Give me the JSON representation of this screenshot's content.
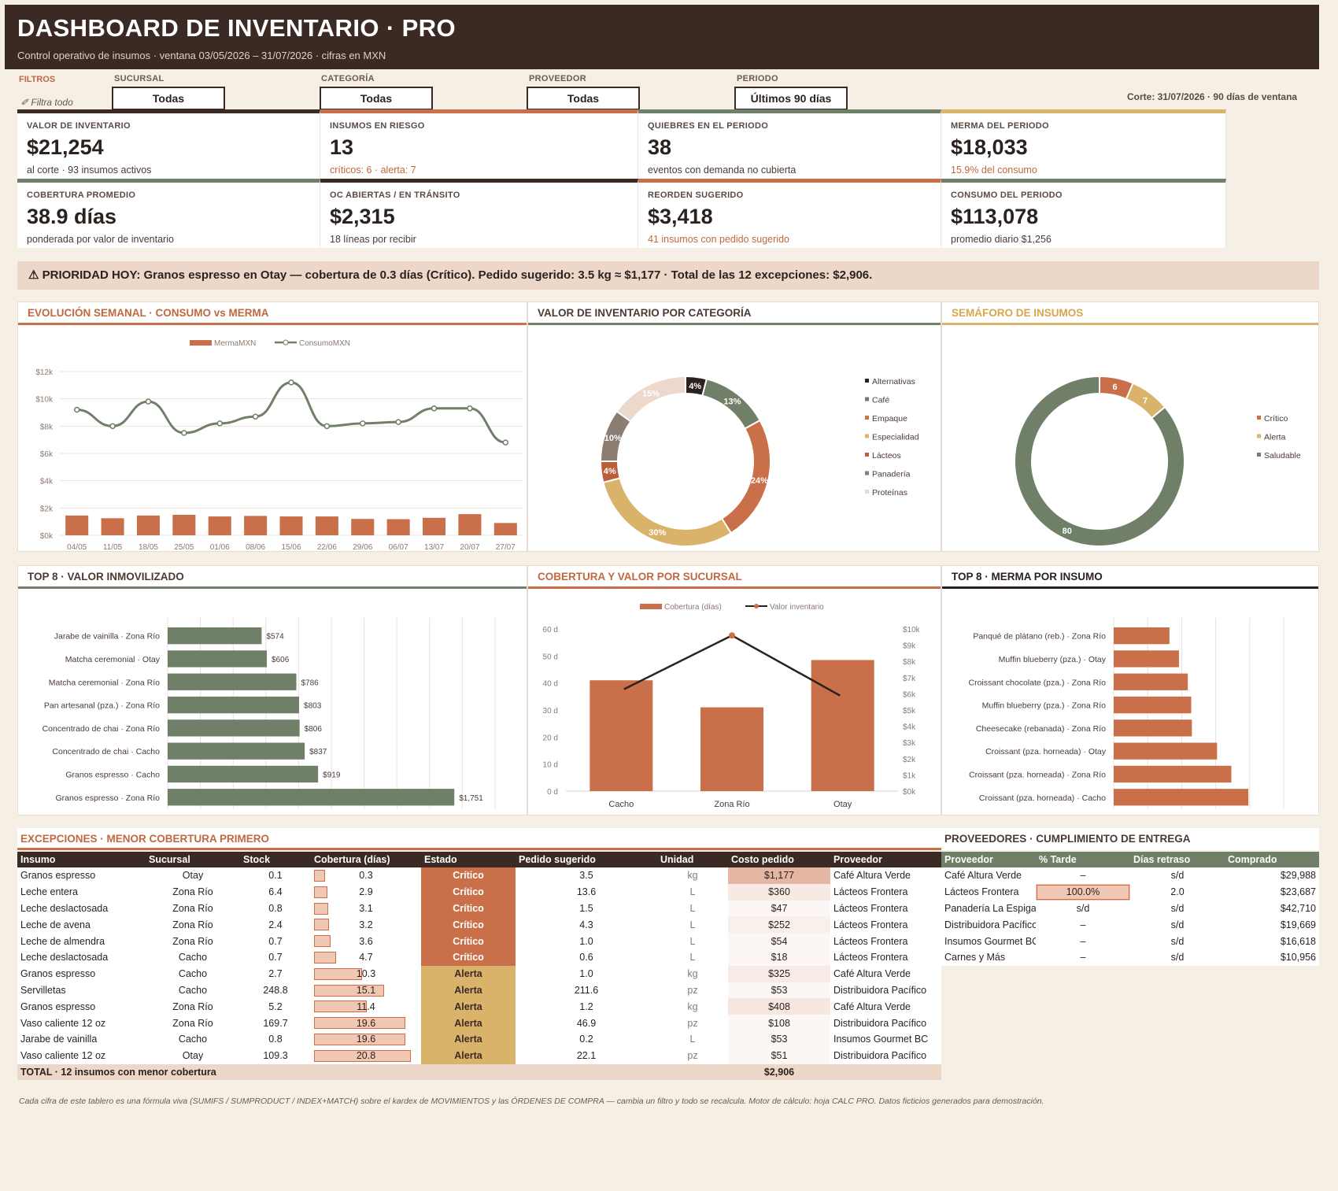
{
  "header": {
    "title": "DASHBOARD DE INVENTARIO · PRO",
    "subtitle": "Control operativo de insumos · ventana 03/05/2026 – 31/07/2026 · cifras en MXN"
  },
  "filters": {
    "label": "FILTROS",
    "clear": "Filtra todo",
    "items": [
      {
        "label": "SUCURSAL",
        "value": "Todas"
      },
      {
        "label": "CATEGORÍA",
        "value": "Todas"
      },
      {
        "label": "PROVEEDOR",
        "value": "Todas"
      },
      {
        "label": "PERIODO",
        "value": "Últimos 90 días"
      }
    ],
    "cut": "Corte: 31/07/2026 · 90 días de ventana"
  },
  "kpis": [
    {
      "label": "VALOR DE INVENTARIO",
      "value": "$21,254",
      "sub": "al corte · 93 insumos activos",
      "accent": false
    },
    {
      "label": "INSUMOS EN RIESGO",
      "value": "13",
      "sub": "críticos: 6 · alerta: 7",
      "accent": true
    },
    {
      "label": "QUIEBRES EN EL PERIODO",
      "value": "38",
      "sub": "eventos con demanda no cubierta",
      "accent": false
    },
    {
      "label": "MERMA DEL PERIODO",
      "value": "$18,033",
      "sub": "15.9% del consumo",
      "accent": true
    },
    {
      "label": "COBERTURA PROMEDIO",
      "value": "38.9 días",
      "sub": "ponderada por valor de inventario",
      "accent": false
    },
    {
      "label": "OC ABIERTAS / EN TRÁNSITO",
      "value": "$2,315",
      "sub": "18 líneas por recibir",
      "accent": false
    },
    {
      "label": "REORDEN SUGERIDO",
      "value": "$3,418",
      "sub": "41 insumos con pedido sugerido",
      "accent": true
    },
    {
      "label": "CONSUMO DEL PERIODO",
      "value": "$113,078",
      "sub": "promedio diario $1,256",
      "accent": false
    }
  ],
  "alert": "⚠ PRIORIDAD HOY: Granos espresso en Otay — cobertura de 0.3 días (Crítico). Pedido sugerido: 3.5 kg ≈ $1,177 · Total de las 12 excepciones: $2,906.",
  "panels": {
    "weekly": "EVOLUCIÓN SEMANAL · CONSUMO vs MERMA",
    "category": "VALOR DE INVENTARIO POR CATEGORÍA",
    "semaforo": "SEMÁFORO DE INSUMOS",
    "top8val": "TOP 8 · VALOR INMOVILIZADO",
    "branch": "COBERTURA Y VALOR POR SUCURSAL",
    "top8merma": "TOP 8 · MERMA POR INSUMO",
    "exceptions": "EXCEPCIONES · MENOR COBERTURA PRIMERO",
    "suppliers": "PROVEEDORES · CUMPLIMIENTO DE ENTREGA"
  },
  "chart_data": [
    {
      "type": "bar",
      "title": "EVOLUCIÓN SEMANAL · CONSUMO vs MERMA",
      "categories": [
        "04/05",
        "11/05",
        "18/05",
        "25/05",
        "01/06",
        "08/06",
        "15/06",
        "22/06",
        "29/06",
        "06/07",
        "13/07",
        "20/07",
        "27/07"
      ],
      "series": [
        {
          "name": "MermaMXN",
          "type": "bar",
          "values": [
            1450,
            1250,
            1450,
            1500,
            1380,
            1420,
            1380,
            1380,
            1200,
            1180,
            1280,
            1550,
            900
          ]
        },
        {
          "name": "ConsumoMXN",
          "type": "line",
          "values": [
            9200,
            8000,
            9800,
            7500,
            8200,
            8700,
            11200,
            8000,
            8200,
            8300,
            9300,
            9300,
            6800
          ]
        }
      ],
      "ylim": [
        0,
        12000
      ],
      "yticks": [
        "$0k",
        "$2k",
        "$4k",
        "$6k",
        "$8k",
        "$10k",
        "$12k"
      ],
      "grid": true,
      "legend": "top"
    },
    {
      "type": "pie",
      "title": "VALOR DE INVENTARIO POR CATEGORÍA",
      "labels": [
        "Alternativas",
        "Café",
        "Empaque",
        "Especialidad",
        "Lácteos",
        "Panadería",
        "Proteínas"
      ],
      "values": [
        4,
        13,
        24,
        30,
        4,
        10,
        15
      ],
      "colors": [
        "#2b2220",
        "#6f7f68",
        "#c9704a",
        "#d9b36a",
        "#b85f3c",
        "#8b7d72",
        "#ecd9cc"
      ],
      "legend": "right"
    },
    {
      "type": "pie",
      "title": "SEMÁFORO DE INSUMOS",
      "labels": [
        "Crítico",
        "Alerta",
        "Saludable"
      ],
      "values": [
        6,
        7,
        80
      ],
      "colors": [
        "#c9704a",
        "#d9b36a",
        "#6f7f68"
      ],
      "legend": "right"
    },
    {
      "type": "bar",
      "title": "TOP 8 · VALOR INMOVILIZADO",
      "orientation": "horizontal",
      "categories": [
        "Jarabe de vainilla · Zona Río",
        "Matcha ceremonial · Otay",
        "Matcha ceremonial · Zona Río",
        "Pan artesanal (pza.) · Zona Río",
        "Concentrado de chai · Zona Río",
        "Concentrado de chai · Cacho",
        "Granos espresso · Cacho",
        "Granos espresso · Zona Río"
      ],
      "values": [
        574,
        606,
        786,
        803,
        806,
        837,
        919,
        1751
      ],
      "labels": [
        "$574",
        "$606",
        "$786",
        "$803",
        "$806",
        "$837",
        "$919",
        "$1,751"
      ],
      "xlim": [
        0,
        2000
      ],
      "xticks": [
        "$0",
        "$200",
        "$400",
        "$600",
        "$800",
        "$1,000",
        "$1,200",
        "$1,400",
        "$1,600",
        "$1,800",
        "$2,000"
      ]
    },
    {
      "type": "bar",
      "title": "COBERTURA Y VALOR POR SUCURSAL",
      "categories": [
        "Cacho",
        "Zona Río",
        "Otay"
      ],
      "series": [
        {
          "name": "Cobertura (días)",
          "type": "bar",
          "values": [
            41,
            31,
            48.5
          ]
        },
        {
          "name": "Valor inventario",
          "type": "line",
          "axis": "right",
          "values": [
            6200,
            9600,
            5800
          ]
        }
      ],
      "ylim": [
        0,
        60
      ],
      "yticks": [
        "0 d",
        "10 d",
        "20 d",
        "30 d",
        "40 d",
        "50 d",
        "60 d"
      ],
      "y2lim": [
        0,
        10000
      ],
      "y2ticks": [
        "$0k",
        "$1k",
        "$2k",
        "$3k",
        "$4k",
        "$5k",
        "$6k",
        "$7k",
        "$8k",
        "$9k",
        "$10k"
      ],
      "legend": "top"
    },
    {
      "type": "bar",
      "title": "TOP 8 · MERMA POR INSUMO",
      "orientation": "horizontal",
      "categories": [
        "Panqué de plátano (reb.) · Zona Río",
        "Muffin blueberry (pza.) · Otay",
        "Croissant chocolate (pza.) · Zona Río",
        "Muffin blueberry (pza.) · Zona Río",
        "Cheesecake (rebanada) · Zona Río",
        "Croissant (pza. horneada) · Otay",
        "Croissant (pza. horneada) · Zona Río",
        "Croissant (pza. horneada) · Cacho"
      ],
      "values": [
        820,
        960,
        1090,
        1140,
        1150,
        1520,
        1730,
        1980
      ],
      "xlim": [
        0,
        2500
      ],
      "xticks": [
        "$0",
        "$500",
        "$1,000",
        "$1,500",
        "$2,000",
        "$2,500"
      ]
    }
  ],
  "exceptions": {
    "headers": [
      "Insumo",
      "Sucursal",
      "Stock",
      "Cobertura (días)",
      "Estado",
      "Pedido sugerido",
      "Unidad",
      "Costo pedido",
      "Proveedor"
    ],
    "rows": [
      {
        "insumo": "Granos espresso",
        "sucursal": "Otay",
        "stock": "0.1",
        "cob": "0.3",
        "estado": "Crítico",
        "pedido": "3.5",
        "unidad": "kg",
        "costo": "$1,177",
        "prov": "Café Altura Verde",
        "cv": 0.3,
        "cost": 1177
      },
      {
        "insumo": "Leche entera",
        "sucursal": "Zona Río",
        "stock": "6.4",
        "cob": "2.9",
        "estado": "Crítico",
        "pedido": "13.6",
        "unidad": "L",
        "costo": "$360",
        "prov": "Lácteos Frontera",
        "cv": 2.9,
        "cost": 360
      },
      {
        "insumo": "Leche deslactosada",
        "sucursal": "Zona Río",
        "stock": "0.8",
        "cob": "3.1",
        "estado": "Crítico",
        "pedido": "1.5",
        "unidad": "L",
        "costo": "$47",
        "prov": "Lácteos Frontera",
        "cv": 3.1,
        "cost": 47
      },
      {
        "insumo": "Leche de avena",
        "sucursal": "Zona Río",
        "stock": "2.4",
        "cob": "3.2",
        "estado": "Crítico",
        "pedido": "4.3",
        "unidad": "L",
        "costo": "$252",
        "prov": "Lácteos Frontera",
        "cv": 3.2,
        "cost": 252
      },
      {
        "insumo": "Leche de almendra",
        "sucursal": "Zona Río",
        "stock": "0.7",
        "cob": "3.6",
        "estado": "Crítico",
        "pedido": "1.0",
        "unidad": "L",
        "costo": "$54",
        "prov": "Lácteos Frontera",
        "cv": 3.6,
        "cost": 54
      },
      {
        "insumo": "Leche deslactosada",
        "sucursal": "Cacho",
        "stock": "0.7",
        "cob": "4.7",
        "estado": "Crítico",
        "pedido": "0.6",
        "unidad": "L",
        "costo": "$18",
        "prov": "Lácteos Frontera",
        "cv": 4.7,
        "cost": 18
      },
      {
        "insumo": "Granos espresso",
        "sucursal": "Cacho",
        "stock": "2.7",
        "cob": "10.3",
        "estado": "Alerta",
        "pedido": "1.0",
        "unidad": "kg",
        "costo": "$325",
        "prov": "Café Altura Verde",
        "cv": 10.3,
        "cost": 325
      },
      {
        "insumo": "Servilletas",
        "sucursal": "Cacho",
        "stock": "248.8",
        "cob": "15.1",
        "estado": "Alerta",
        "pedido": "211.6",
        "unidad": "pz",
        "costo": "$53",
        "prov": "Distribuidora Pacífico",
        "cv": 15.1,
        "cost": 53
      },
      {
        "insumo": "Granos espresso",
        "sucursal": "Zona Río",
        "stock": "5.2",
        "cob": "11.4",
        "estado": "Alerta",
        "pedido": "1.2",
        "unidad": "kg",
        "costo": "$408",
        "prov": "Café Altura Verde",
        "cv": 11.4,
        "cost": 408
      },
      {
        "insumo": "Vaso caliente 12 oz",
        "sucursal": "Zona Río",
        "stock": "169.7",
        "cob": "19.6",
        "estado": "Alerta",
        "pedido": "46.9",
        "unidad": "pz",
        "costo": "$108",
        "prov": "Distribuidora Pacífico",
        "cv": 19.6,
        "cost": 108
      },
      {
        "insumo": "Jarabe de vainilla",
        "sucursal": "Cacho",
        "stock": "0.8",
        "cob": "19.6",
        "estado": "Alerta",
        "pedido": "0.2",
        "unidad": "L",
        "costo": "$53",
        "prov": "Insumos Gourmet BC",
        "cv": 19.6,
        "cost": 53
      },
      {
        "insumo": "Vaso caliente 12 oz",
        "sucursal": "Otay",
        "stock": "109.3",
        "cob": "20.8",
        "estado": "Alerta",
        "pedido": "22.1",
        "unidad": "pz",
        "costo": "$51",
        "prov": "Distribuidora Pacífico",
        "cv": 20.8,
        "cost": 51
      }
    ],
    "total_label": "TOTAL · 12 insumos con menor cobertura",
    "total_value": "$2,906"
  },
  "suppliers": {
    "headers": [
      "Proveedor",
      "% Tarde",
      "Días retraso",
      "Comprado"
    ],
    "rows": [
      {
        "name": "Café Altura Verde",
        "late": "–",
        "delay": "s/d",
        "bought": "$29,988",
        "latebar": 0
      },
      {
        "name": "Lácteos Frontera",
        "late": "100.0%",
        "delay": "2.0",
        "bought": "$23,687",
        "latebar": 1
      },
      {
        "name": "Panadería La Espiga",
        "late": "s/d",
        "delay": "s/d",
        "bought": "$42,710",
        "latebar": 0
      },
      {
        "name": "Distribuidora Pacífico",
        "late": "–",
        "delay": "s/d",
        "bought": "$19,669",
        "latebar": 0
      },
      {
        "name": "Insumos Gourmet BC",
        "late": "–",
        "delay": "s/d",
        "bought": "$16,618",
        "latebar": 0
      },
      {
        "name": "Carnes y Más",
        "late": "–",
        "delay": "s/d",
        "bought": "$10,956",
        "latebar": 0
      }
    ]
  },
  "footer": "Cada cifra de este tablero es una fórmula viva (SUMIFS / SUMPRODUCT / INDEX+MATCH) sobre el kardex de MOVIMIENTOS y las ÓRDENES DE COMPRA — cambia un filtro y todo se recalcula. Motor de cálculo: hoja CALC PRO. Datos ficticios generados para demostración.",
  "colors": {
    "dark": "#3b2a24",
    "accent": "#c9704a",
    "green": "#6f7f68",
    "gold": "#d9b36a",
    "critico": "#c9704a",
    "alerta": "#d9b36a"
  }
}
